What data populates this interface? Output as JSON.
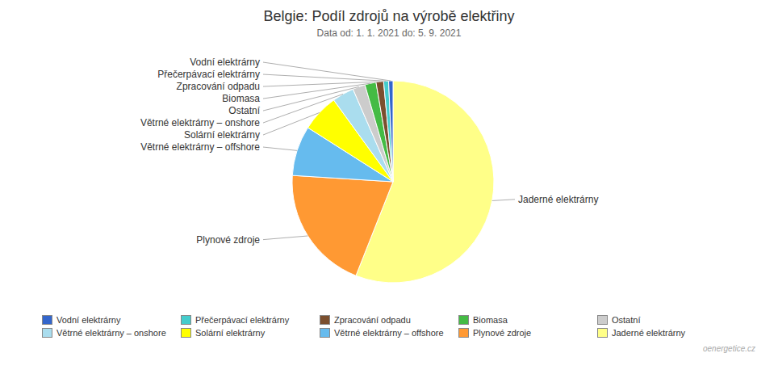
{
  "chart_data": {
    "type": "pie",
    "title": "Belgie: Podíl zdrojů na výrobě elektřiny",
    "subtitle": "Data od: 1. 1. 2021 do: 5. 9. 2021",
    "categories": [
      "Jaderné elektrárny",
      "Plynové zdroje",
      "Větrné elektrárny – offshore",
      "Solární elektrárny",
      "Větrné elektrárny – onshore",
      "Ostatní",
      "Biomasa",
      "Zpracování odpadu",
      "Přečerpávací elektrárny",
      "Vodní elektrárny"
    ],
    "values": [
      56.0,
      20.0,
      8.0,
      6.0,
      3.5,
      2.0,
      1.8,
      1.2,
      0.8,
      0.7
    ],
    "colors": [
      "#FFFF88",
      "#FF9933",
      "#66BBEE",
      "#FFFF00",
      "#AADDEE",
      "#CCCCCC",
      "#44BB44",
      "#7B4F2E",
      "#44CCCC",
      "#3366CC"
    ],
    "legend": "bottom",
    "annotations": [
      "oenergetice.cz"
    ]
  }
}
